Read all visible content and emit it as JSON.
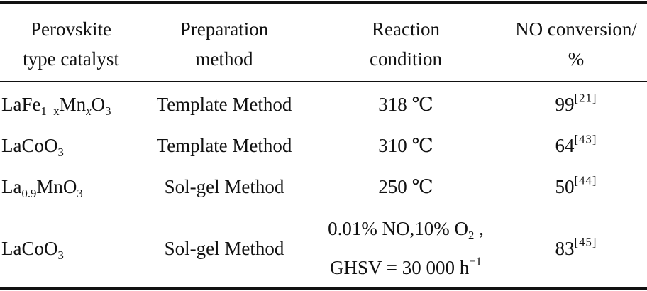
{
  "headers": {
    "catalyst": [
      "Perovskite",
      "type catalyst"
    ],
    "method": [
      "Preparation",
      "method"
    ],
    "condition": [
      "Reaction",
      "condition"
    ],
    "conversion": [
      "NO conversion/",
      "%"
    ]
  },
  "rows": [
    {
      "catalyst": {
        "base": "LaFe",
        "sub1": "1−x",
        "mid": "Mn",
        "sub2": "x",
        "tail": "O",
        "sub3": "3"
      },
      "method": "Template Method",
      "condition": "318 ℃",
      "value": "99",
      "ref": "[21]"
    },
    {
      "catalyst": {
        "base": "LaCoO",
        "sub1": "3"
      },
      "method": "Template Method",
      "condition": "310 ℃",
      "value": "64",
      "ref": "[43]"
    },
    {
      "catalyst": {
        "base": "La",
        "sub1": "0.9",
        "mid": "MnO",
        "sub2": "3"
      },
      "method": "Sol-gel Method",
      "condition": "250 ℃",
      "value": "50",
      "ref": "[44]"
    },
    {
      "catalyst": {
        "base": "LaCoO",
        "sub1": "3"
      },
      "method": "Sol-gel Method",
      "condition_line1": {
        "a": "0.01% NO,10% O",
        "sub": "2",
        "b": " ,"
      },
      "condition_line2": {
        "a": "GHSV = 30 000 h",
        "sup": "−1"
      },
      "value": "83",
      "ref": "[45]"
    }
  ]
}
